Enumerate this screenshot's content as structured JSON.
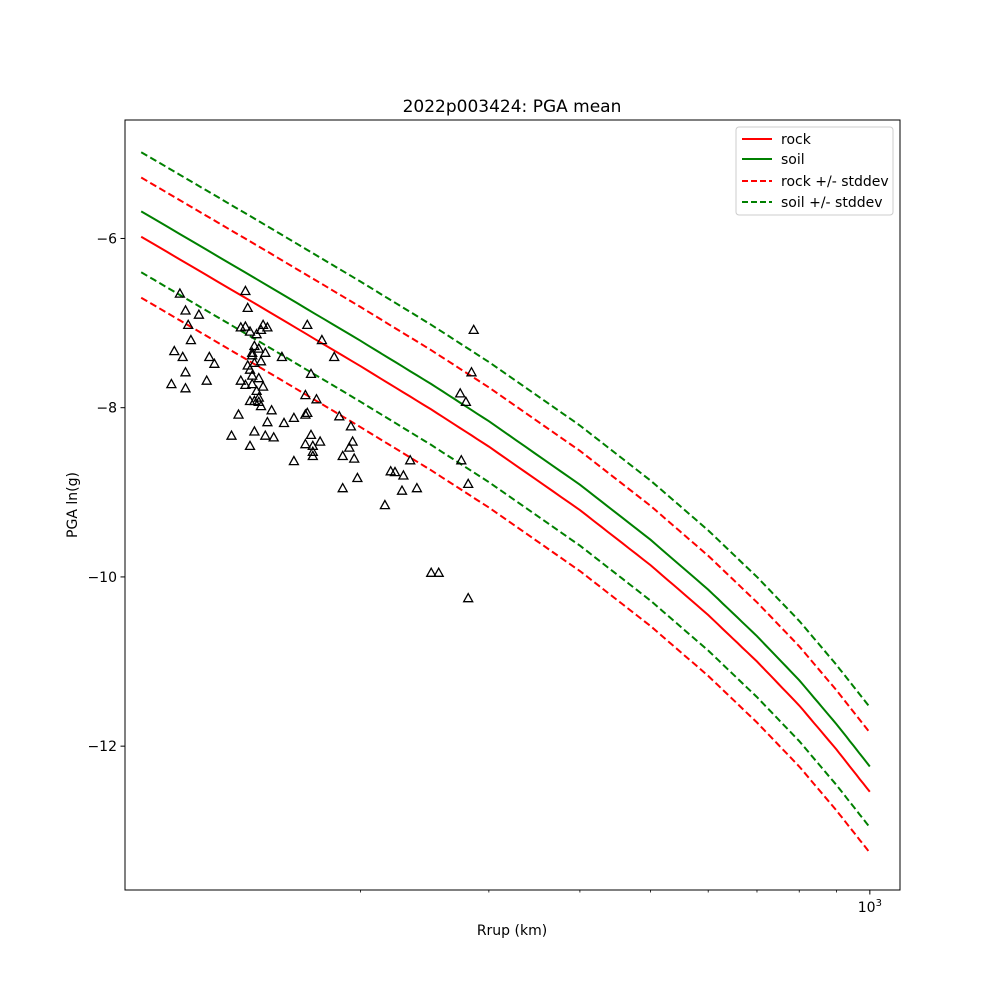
{
  "chart_data": {
    "type": "scatter",
    "title": "2022p003424: PGA mean",
    "xlabel": "Rrup (km)",
    "ylabel": "PGA ln(g)",
    "x_scale": "log",
    "xlim": [
      95,
      1100
    ],
    "ylim": [
      -13.7,
      -4.6
    ],
    "x_major_tick_labels": [
      {
        "value": 1000,
        "base": "10",
        "exponent": "3"
      }
    ],
    "x_minor_ticks": [
      200,
      300,
      400,
      500,
      600,
      700,
      800,
      900
    ],
    "y_ticks": [
      {
        "value": -6,
        "label": "−6"
      },
      {
        "value": -8,
        "label": "−8"
      },
      {
        "value": -10,
        "label": "−10"
      },
      {
        "value": -12,
        "label": "−12"
      }
    ],
    "grid": false,
    "legend": {
      "position": "top-right",
      "entries": [
        {
          "label": "rock",
          "color": "#ff0000",
          "style": "solid"
        },
        {
          "label": "soil",
          "color": "#008000",
          "style": "solid"
        },
        {
          "label": "rock +/- stddev",
          "color": "#ff0000",
          "style": "dashed"
        },
        {
          "label": "soil +/- stddev",
          "color": "#008000",
          "style": "dashed"
        }
      ]
    },
    "lines": [
      {
        "name": "rock",
        "color": "#ff0000",
        "style": "solid",
        "x": [
          100,
          150,
          200,
          250,
          300,
          400,
          500,
          600,
          700,
          800,
          900,
          1000
        ],
        "y": [
          -5.98,
          -6.87,
          -7.51,
          -8.02,
          -8.46,
          -9.21,
          -9.86,
          -10.45,
          -11.0,
          -11.52,
          -12.04,
          -12.54
        ]
      },
      {
        "name": "soil",
        "color": "#008000",
        "style": "solid",
        "x": [
          100,
          150,
          200,
          250,
          300,
          400,
          500,
          600,
          700,
          800,
          900,
          1000
        ],
        "y": [
          -5.68,
          -6.57,
          -7.21,
          -7.72,
          -8.16,
          -8.91,
          -9.56,
          -10.15,
          -10.7,
          -11.22,
          -11.74,
          -12.24
        ]
      },
      {
        "name": "rock + stddev",
        "color": "#ff0000",
        "style": "dashed",
        "x": [
          100,
          150,
          200,
          250,
          300,
          400,
          500,
          600,
          700,
          800,
          900,
          1000
        ],
        "y": [
          -5.28,
          -6.17,
          -6.81,
          -7.32,
          -7.76,
          -8.51,
          -9.16,
          -9.75,
          -10.3,
          -10.82,
          -11.34,
          -11.84
        ]
      },
      {
        "name": "rock - stddev",
        "color": "#ff0000",
        "style": "dashed",
        "x": [
          100,
          150,
          200,
          250,
          300,
          400,
          500,
          600,
          700,
          800,
          900,
          1000
        ],
        "y": [
          -6.7,
          -7.59,
          -8.23,
          -8.74,
          -9.18,
          -9.93,
          -10.58,
          -11.17,
          -11.72,
          -12.24,
          -12.76,
          -13.26
        ]
      },
      {
        "name": "soil + stddev",
        "color": "#008000",
        "style": "dashed",
        "x": [
          100,
          150,
          200,
          250,
          300,
          400,
          500,
          600,
          700,
          800,
          900,
          1000
        ],
        "y": [
          -4.98,
          -5.87,
          -6.51,
          -7.02,
          -7.46,
          -8.21,
          -8.86,
          -9.45,
          -10.0,
          -10.52,
          -11.04,
          -11.54
        ]
      },
      {
        "name": "soil - stddev",
        "color": "#008000",
        "style": "dashed",
        "x": [
          100,
          150,
          200,
          250,
          300,
          400,
          500,
          600,
          700,
          800,
          900,
          1000
        ],
        "y": [
          -6.4,
          -7.29,
          -7.93,
          -8.44,
          -8.88,
          -9.63,
          -10.28,
          -10.87,
          -11.42,
          -11.94,
          -12.46,
          -12.96
        ]
      }
    ],
    "observations": {
      "marker": "triangle",
      "points": [
        [
          113,
          -6.65
        ],
        [
          115,
          -6.85
        ],
        [
          116,
          -7.02
        ],
        [
          117,
          -7.2
        ],
        [
          111,
          -7.33
        ],
        [
          114,
          -7.4
        ],
        [
          115,
          -7.58
        ],
        [
          110,
          -7.72
        ],
        [
          115,
          -7.77
        ],
        [
          120,
          -6.9
        ],
        [
          124,
          -7.4
        ],
        [
          126,
          -7.48
        ],
        [
          123,
          -7.68
        ],
        [
          133,
          -8.33
        ],
        [
          136,
          -8.08
        ],
        [
          139,
          -6.62
        ],
        [
          137,
          -7.05
        ],
        [
          139,
          -7.04
        ],
        [
          140,
          -6.82
        ],
        [
          141,
          -7.1
        ],
        [
          142,
          -7.35
        ],
        [
          142,
          -7.38
        ],
        [
          140,
          -7.5
        ],
        [
          141,
          -7.55
        ],
        [
          142,
          -7.62
        ],
        [
          137,
          -7.68
        ],
        [
          139,
          -7.73
        ],
        [
          142,
          -7.72
        ],
        [
          143,
          -7.27
        ],
        [
          145,
          -7.3
        ],
        [
          144,
          -7.13
        ],
        [
          146,
          -7.08
        ],
        [
          147,
          -7.02
        ],
        [
          143,
          -7.47
        ],
        [
          146,
          -7.45
        ],
        [
          145,
          -7.65
        ],
        [
          144,
          -7.8
        ],
        [
          143,
          -7.92
        ],
        [
          145,
          -7.93
        ],
        [
          145,
          -7.88
        ],
        [
          146,
          -7.98
        ],
        [
          147,
          -7.75
        ],
        [
          148,
          -7.35
        ],
        [
          149,
          -7.05
        ],
        [
          141,
          -7.92
        ],
        [
          143,
          -8.28
        ],
        [
          141,
          -8.45
        ],
        [
          148,
          -8.33
        ],
        [
          149,
          -8.17
        ],
        [
          151,
          -8.03
        ],
        [
          152,
          -8.35
        ],
        [
          156,
          -7.4
        ],
        [
          157,
          -8.18
        ],
        [
          162,
          -8.12
        ],
        [
          162,
          -8.63
        ],
        [
          168,
          -8.43
        ],
        [
          168,
          -7.85
        ],
        [
          169,
          -8.06
        ],
        [
          168,
          -8.08
        ],
        [
          171,
          -8.32
        ],
        [
          172,
          -8.45
        ],
        [
          172,
          -8.52
        ],
        [
          172,
          -8.57
        ],
        [
          171,
          -7.6
        ],
        [
          169,
          -7.02
        ],
        [
          174,
          -7.9
        ],
        [
          176,
          -8.4
        ],
        [
          177,
          -7.2
        ],
        [
          184,
          -7.4
        ],
        [
          187,
          -8.1
        ],
        [
          189,
          -8.57
        ],
        [
          189,
          -8.95
        ],
        [
          193,
          -8.47
        ],
        [
          195,
          -8.4
        ],
        [
          194,
          -8.22
        ],
        [
          196,
          -8.6
        ],
        [
          198,
          -8.83
        ],
        [
          216,
          -9.15
        ],
        [
          220,
          -8.75
        ],
        [
          223,
          -8.76
        ],
        [
          228,
          -8.98
        ],
        [
          229,
          -8.8
        ],
        [
          234,
          -8.62
        ],
        [
          239,
          -8.95
        ],
        [
          250,
          -9.95
        ],
        [
          256,
          -9.95
        ],
        [
          274,
          -7.83
        ],
        [
          275,
          -8.62
        ],
        [
          279,
          -7.93
        ],
        [
          281,
          -8.9
        ],
        [
          281,
          -10.25
        ],
        [
          284,
          -7.58
        ],
        [
          286,
          -7.08
        ]
      ]
    }
  }
}
